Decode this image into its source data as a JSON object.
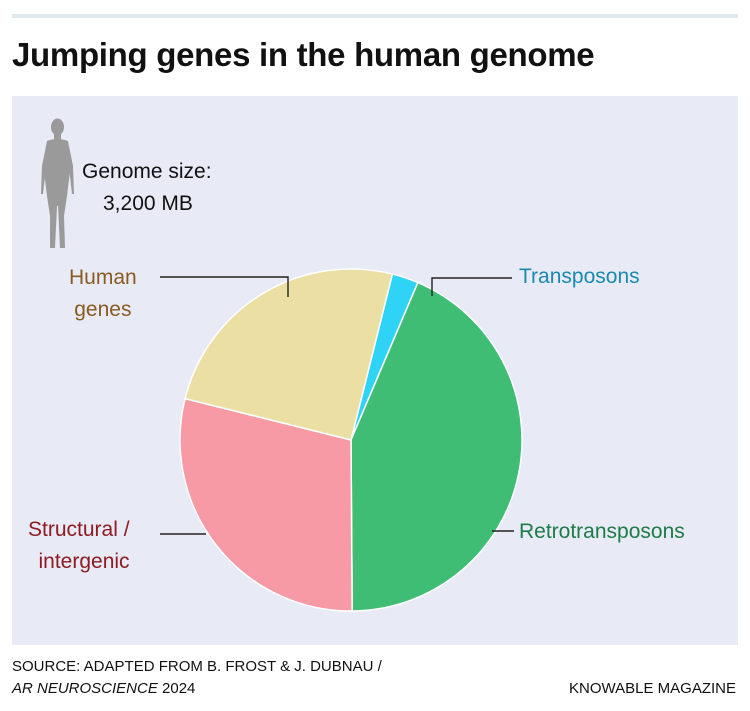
{
  "title": "Jumping genes in the human genome",
  "genome": {
    "label": "Genome size:",
    "value": "3,200 MB"
  },
  "chart_data": {
    "type": "pie",
    "title": "Jumping genes in the human genome",
    "slices": [
      {
        "label_lines": [
          "Transposons"
        ],
        "value": 2.5,
        "color": "#2ed3f5",
        "label_color": "#1a8ab0"
      },
      {
        "label_lines": [
          "Retrotransposons"
        ],
        "value": 43.5,
        "color": "#40bd75",
        "label_color": "#1e7a48"
      },
      {
        "label_lines": [
          "Structural /",
          "intergenic"
        ],
        "value": 29,
        "color": "#f79aa5",
        "label_color": "#8c1c22"
      },
      {
        "label_lines": [
          "Human",
          "genes"
        ],
        "value": 25,
        "color": "#ebdfa3",
        "label_color": "#8a5a22"
      }
    ],
    "start_angle_deg": 14,
    "legend": "direct-labels"
  },
  "footer": {
    "source_line1": "SOURCE: ADAPTED FROM B. FROST & J. DUBNAU /",
    "source_journal": "AR NEUROSCIENCE",
    "source_year": " 2024",
    "credit": "KNOWABLE MAGAZINE"
  }
}
